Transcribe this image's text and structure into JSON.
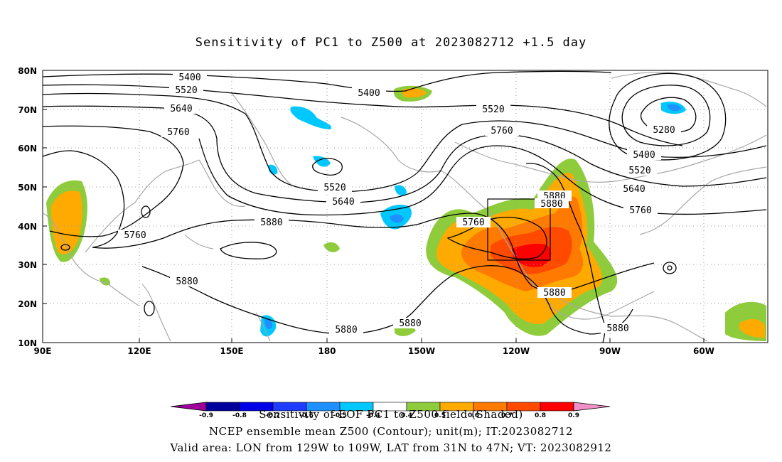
{
  "title": "Sensitivity of PC1 to Z500 at 2023082712 +1.5 day",
  "lat_labels": [
    "80N",
    "70N",
    "60N",
    "50N",
    "40N",
    "30N",
    "20N",
    "10N"
  ],
  "lon_labels": [
    "90E",
    "120E",
    "150E",
    "180",
    "150W",
    "120W",
    "90W",
    "60W"
  ],
  "contour_labels": [
    "5400",
    "5520",
    "5640",
    "5760",
    "5400",
    "5520",
    "5760",
    "5520",
    "5640",
    "5400",
    "5520",
    "5640",
    "5760",
    "5280",
    "5880",
    "5880",
    "5760",
    "5760",
    "5880",
    "5880",
    "5880",
    "5880",
    "5880"
  ],
  "colorbar_ticks": [
    "-0.9",
    "-0.8",
    "-0.7",
    "-0.6",
    "-0.5",
    "-0.4",
    "0.4",
    "0.5",
    "0.6",
    "0.7",
    "0.8",
    "0.9"
  ],
  "colorbar_colors": [
    "#a0009c",
    "#00009c",
    "#0000e6",
    "#1e3cff",
    "#1e90ff",
    "#00c8ff",
    "#ffffff",
    "#8fcc3c",
    "#ffaa00",
    "#ff7a00",
    "#ff4a00",
    "#ff0000",
    "#f090c8"
  ],
  "footer": {
    "line1": "Sensitivity of EOF PC1 to Z500 field (Shaded)",
    "line2": "NCEP ensemble mean Z500 (Contour); unit(m); IT:2023082712",
    "line3": "Valid area: LON from 129W to 109W, LAT from 31N to 47N; VT: 2023082912"
  }
}
